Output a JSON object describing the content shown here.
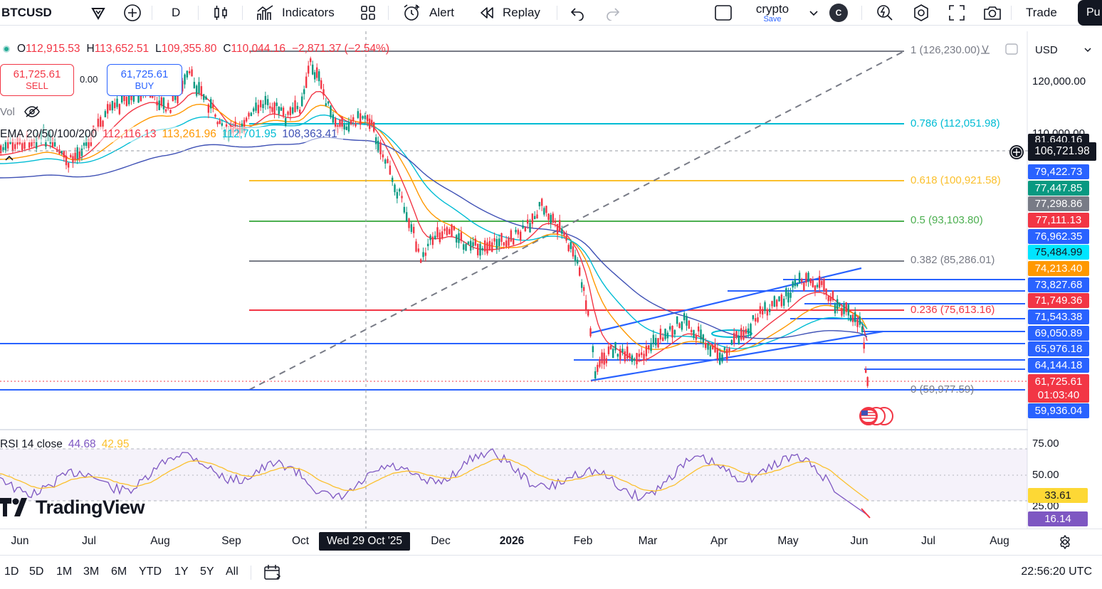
{
  "toolbar": {
    "symbol": "BTCUSD",
    "interval": "D",
    "indicators_label": "Indicators",
    "alert_label": "Alert",
    "replay_label": "Replay",
    "layout_name": "crypto",
    "layout_save": "Save",
    "layout_badge": "C",
    "trade_label": "Trade",
    "publish_label": "Pu",
    "icons": [
      "tick-icon",
      "add-icon",
      "candles-icon",
      "indicators-icon",
      "templates-icon",
      "alert-icon",
      "replay-icon",
      "undo-icon",
      "redo-icon",
      "layout-icon",
      "chevron-down-icon",
      "lightning-icon",
      "settings-icon",
      "fullscreen-icon",
      "camera-icon"
    ]
  },
  "legend": {
    "o_label": "O",
    "o_value": "112,915.53",
    "h_label": "H",
    "h_value": "113,652.51",
    "l_label": "L",
    "l_value": "109,355.80",
    "c_label": "C",
    "c_value": "110,044.16",
    "change": "−2,871.37 (−2.54%)",
    "change_color": "#f23645"
  },
  "trade": {
    "sell_price": "61,725.61",
    "sell_label": "SELL",
    "spread": "0.00",
    "buy_price": "61,725.61",
    "buy_label": "BUY"
  },
  "volume": {
    "label": "Vol"
  },
  "ema": {
    "label": "EMA 20/50/100/200",
    "v20": "112,116.13",
    "c20": "#f23645",
    "v50": "113,261.96",
    "c50": "#ff9800",
    "v100": "112,701.95",
    "c100": "#00bcd4",
    "v200": "108,363.41",
    "c200": "#3f51b5"
  },
  "rsi": {
    "label": "RSI 14 close",
    "value": "44.68",
    "ma": "42.95",
    "value_color": "#7e57c2",
    "ma_color": "#fbc02d"
  },
  "brand": {
    "name": "TradingView"
  },
  "fib": [
    {
      "level": "1 (126,230.00)",
      "color": "#787b86"
    },
    {
      "level": "0.786 (112,051.98)",
      "color": "#00bcd4"
    },
    {
      "level": "0.618 (100,921.58)",
      "color": "#fbc02d"
    },
    {
      "level": "0.5 (93,103.80)",
      "color": "#4caf50"
    },
    {
      "level": "0.382 (85,286.01)",
      "color": "#787b86"
    },
    {
      "level": "0.236 (75,613.16)",
      "color": "#f23645"
    },
    {
      "level": "0 (59,977.59)",
      "color": "#787b86"
    }
  ],
  "price_axis": {
    "currency": "USD",
    "plain_labels": [
      "120,000.00",
      "110,000.00"
    ],
    "crosshair_price": "106,721.98",
    "labels": [
      {
        "text": "81,640.16",
        "bg": "#131722"
      },
      {
        "text": "79,422.73",
        "bg": "#2962ff"
      },
      {
        "text": "77,447.85",
        "bg": "#089981"
      },
      {
        "text": "77,298.86",
        "bg": "#787b86"
      },
      {
        "text": "77,111.13",
        "bg": "#f23645"
      },
      {
        "text": "76,962.35",
        "bg": "#2962ff"
      },
      {
        "text": "75,484.99",
        "bg": "#00e5ff"
      },
      {
        "text": "74,213.40",
        "bg": "#ff9800"
      },
      {
        "text": "73,827.68",
        "bg": "#2962ff"
      },
      {
        "text": "71,749.36",
        "bg": "#f23645"
      },
      {
        "text": "71,543.38",
        "bg": "#2962ff"
      },
      {
        "text": "69,050.89",
        "bg": "#2962ff"
      },
      {
        "text": "65,976.18",
        "bg": "#2962ff"
      },
      {
        "text": "64,144.18",
        "bg": "#2962ff"
      },
      {
        "text": "61,725.61",
        "bg": "#f23645"
      },
      {
        "text": "01:03:40",
        "bg": "#f23645"
      },
      {
        "text": "59,936.04",
        "bg": "#2962ff"
      }
    ],
    "rsi_labels": [
      "75.00",
      "50.00",
      "25.00"
    ],
    "rsi_ma_tag": "33.61",
    "rsi_tag": "16.14"
  },
  "time_axis": {
    "ticks": [
      "Jun",
      "Jul",
      "Aug",
      "Sep",
      "Oct",
      "Dec",
      "2026",
      "Feb",
      "Mar",
      "Apr",
      "May",
      "Jun",
      "Jul",
      "Aug"
    ],
    "crosshair_date": "Wed 29 Oct '25"
  },
  "bottom": {
    "ranges": [
      "1D",
      "5D",
      "1M",
      "3M",
      "6M",
      "YTD",
      "1Y",
      "5Y",
      "All"
    ],
    "clock": "22:56:20 UTC"
  }
}
